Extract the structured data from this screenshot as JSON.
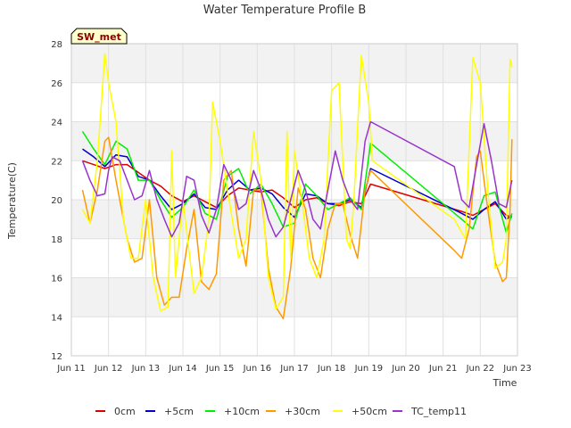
{
  "chart_data": {
    "type": "line",
    "title": "Water Temperature Profile B",
    "xlabel": "Time",
    "ylabel": "Temperature(C)",
    "badge": "SW_met",
    "xlim": [
      11,
      23
    ],
    "ylim": [
      12,
      28
    ],
    "x_ticks": [
      {
        "value": 11,
        "label": "Jun 11"
      },
      {
        "value": 12,
        "label": "Jun 12"
      },
      {
        "value": 13,
        "label": "Jun 13"
      },
      {
        "value": 14,
        "label": "Jun 14"
      },
      {
        "value": 15,
        "label": "Jun 15"
      },
      {
        "value": 16,
        "label": "Jun 16"
      },
      {
        "value": 17,
        "label": "Jun 17"
      },
      {
        "value": 18,
        "label": "Jun 18"
      },
      {
        "value": 19,
        "label": "Jun 19"
      },
      {
        "value": 20,
        "label": "Jun 20"
      },
      {
        "value": 21,
        "label": "Jun 21"
      },
      {
        "value": 22,
        "label": "Jun 22"
      },
      {
        "value": 23,
        "label": "Jun 23"
      }
    ],
    "y_ticks": [
      12,
      14,
      16,
      18,
      20,
      22,
      24,
      26,
      28
    ],
    "grid": true,
    "legend_position": "bottom",
    "series": [
      {
        "name": "0cm",
        "color": "#dd0000",
        "x": [
          11.3,
          11.6,
          11.9,
          12.2,
          12.5,
          12.8,
          13.1,
          13.4,
          13.7,
          14.0,
          14.3,
          14.6,
          14.9,
          15.2,
          15.5,
          15.8,
          16.1,
          16.4,
          16.7,
          17.0,
          17.3,
          17.6,
          17.9,
          18.2,
          18.5,
          18.8,
          19.05,
          21.5,
          21.8,
          22.1,
          22.4,
          22.7,
          22.85
        ],
        "y": [
          22.0,
          21.8,
          21.6,
          21.8,
          21.8,
          21.4,
          21.0,
          20.7,
          20.2,
          19.9,
          20.2,
          19.9,
          19.6,
          20.2,
          20.6,
          20.5,
          20.4,
          20.5,
          20.1,
          19.6,
          20.0,
          20.1,
          19.8,
          19.7,
          19.9,
          19.8,
          20.8,
          19.4,
          19.2,
          19.5,
          19.8,
          19.2,
          19.1
        ]
      },
      {
        "name": "+5cm",
        "color": "#0000cc",
        "x": [
          11.3,
          11.6,
          11.9,
          12.2,
          12.5,
          12.8,
          13.1,
          13.4,
          13.7,
          14.0,
          14.3,
          14.6,
          14.9,
          15.2,
          15.5,
          15.8,
          16.1,
          16.4,
          16.7,
          17.0,
          17.3,
          17.6,
          17.9,
          18.2,
          18.5,
          18.8,
          19.05,
          21.5,
          21.8,
          22.1,
          22.4,
          22.7,
          22.85
        ],
        "y": [
          22.6,
          22.2,
          21.7,
          22.3,
          22.2,
          21.2,
          21.0,
          20.2,
          19.5,
          19.8,
          20.3,
          19.6,
          19.5,
          20.5,
          21.0,
          20.5,
          20.6,
          20.3,
          19.6,
          19.1,
          20.3,
          20.2,
          19.8,
          19.8,
          20.0,
          19.6,
          21.6,
          19.3,
          19.0,
          19.5,
          19.9,
          19.0,
          19.2
        ]
      },
      {
        "name": "+10cm",
        "color": "#00ee00",
        "x": [
          11.3,
          11.6,
          11.9,
          12.2,
          12.5,
          12.8,
          13.1,
          13.4,
          13.7,
          14.0,
          14.3,
          14.6,
          14.9,
          15.2,
          15.5,
          15.8,
          16.1,
          16.4,
          16.7,
          17.0,
          17.3,
          17.6,
          17.9,
          18.2,
          18.5,
          18.8,
          19.05,
          21.5,
          21.8,
          22.1,
          22.4,
          22.7,
          22.85
        ],
        "y": [
          23.5,
          22.6,
          21.8,
          23.0,
          22.6,
          21.0,
          21.0,
          20.0,
          19.1,
          19.6,
          20.5,
          19.3,
          19.0,
          21.2,
          21.6,
          20.3,
          20.8,
          19.8,
          18.6,
          18.8,
          20.8,
          20.2,
          19.5,
          19.8,
          20.1,
          19.5,
          22.9,
          19.0,
          18.5,
          20.2,
          20.4,
          18.3,
          19.3
        ]
      },
      {
        "name": "+30cm",
        "color": "#ff9900",
        "x": [
          11.3,
          11.5,
          11.7,
          11.9,
          12.0,
          12.2,
          12.5,
          12.7,
          12.9,
          13.1,
          13.3,
          13.5,
          13.7,
          13.9,
          14.1,
          14.3,
          14.5,
          14.7,
          14.9,
          15.1,
          15.3,
          15.5,
          15.7,
          15.9,
          16.1,
          16.3,
          16.5,
          16.7,
          16.9,
          17.1,
          17.3,
          17.5,
          17.7,
          17.9,
          18.1,
          18.3,
          18.5,
          18.7,
          18.9,
          19.05,
          21.3,
          21.5,
          21.7,
          21.9,
          22.0,
          22.2,
          22.4,
          22.6,
          22.7,
          22.8,
          22.85
        ],
        "y": [
          20.5,
          18.8,
          20.5,
          23.0,
          23.2,
          21.0,
          18.0,
          16.8,
          17.0,
          20.0,
          16.0,
          14.6,
          15.0,
          15.0,
          17.5,
          19.5,
          15.8,
          15.4,
          16.2,
          21.0,
          21.5,
          18.5,
          16.6,
          20.5,
          20.5,
          16.5,
          14.5,
          13.9,
          16.5,
          20.6,
          19.5,
          17.0,
          16.0,
          18.5,
          19.8,
          19.8,
          18.2,
          17.0,
          20.5,
          21.5,
          17.4,
          17.0,
          18.5,
          22.2,
          22.5,
          19.5,
          16.8,
          15.8,
          16.0,
          19.5,
          23.1
        ]
      },
      {
        "name": "+50cm",
        "color": "#ffff00",
        "x": [
          11.3,
          11.5,
          11.7,
          11.9,
          12.0,
          12.2,
          12.4,
          12.6,
          12.8,
          13.0,
          13.2,
          13.4,
          13.6,
          13.7,
          13.8,
          14.0,
          14.3,
          14.5,
          14.7,
          14.8,
          15.0,
          15.2,
          15.5,
          15.7,
          15.9,
          16.1,
          16.3,
          16.5,
          16.7,
          16.8,
          16.9,
          17.0,
          17.2,
          17.4,
          17.6,
          17.8,
          18.0,
          18.2,
          18.4,
          18.5,
          18.6,
          18.8,
          19.0,
          19.1,
          21.3,
          21.6,
          21.8,
          22.0,
          22.2,
          22.4,
          22.6,
          22.7,
          22.8,
          22.85
        ],
        "y": [
          19.5,
          18.8,
          22.0,
          27.5,
          26.0,
          24.0,
          19.0,
          17.0,
          17.0,
          20.0,
          16.0,
          14.3,
          14.5,
          22.5,
          16.0,
          20.0,
          15.2,
          16.0,
          19.0,
          25.0,
          23.0,
          20.5,
          17.0,
          18.0,
          23.5,
          21.0,
          16.0,
          14.4,
          15.0,
          23.5,
          17.0,
          22.5,
          20.0,
          17.0,
          16.0,
          18.0,
          25.6,
          26.0,
          18.0,
          17.5,
          20.0,
          27.4,
          25.0,
          22.0,
          19.0,
          18.0,
          27.3,
          26.0,
          20.5,
          16.5,
          16.8,
          18.0,
          27.2,
          26.8
        ]
      },
      {
        "name": "TC_temp11",
        "color": "#9933cc",
        "x": [
          11.3,
          11.5,
          11.7,
          11.9,
          12.0,
          12.1,
          12.3,
          12.5,
          12.7,
          12.9,
          13.1,
          13.3,
          13.5,
          13.7,
          13.9,
          14.1,
          14.3,
          14.5,
          14.7,
          14.9,
          15.1,
          15.3,
          15.5,
          15.7,
          15.9,
          16.1,
          16.3,
          16.5,
          16.7,
          16.9,
          17.1,
          17.3,
          17.5,
          17.7,
          17.9,
          18.1,
          18.3,
          18.5,
          18.7,
          18.9,
          19.05,
          21.3,
          21.5,
          21.7,
          21.9,
          22.1,
          22.3,
          22.5,
          22.7,
          22.85
        ],
        "y": [
          22.0,
          21.0,
          20.2,
          20.3,
          21.5,
          22.2,
          22.0,
          21.0,
          20.0,
          20.2,
          21.5,
          20.0,
          19.0,
          18.1,
          18.8,
          21.2,
          21.0,
          19.2,
          18.3,
          19.5,
          21.8,
          21.0,
          19.5,
          19.8,
          21.5,
          20.5,
          19.0,
          18.1,
          18.6,
          20.0,
          21.5,
          20.5,
          19.0,
          18.5,
          20.5,
          22.5,
          21.0,
          20.0,
          19.5,
          23.0,
          24.0,
          21.7,
          20.0,
          19.6,
          21.8,
          23.9,
          22.0,
          19.8,
          19.6,
          21.0
        ]
      }
    ]
  }
}
